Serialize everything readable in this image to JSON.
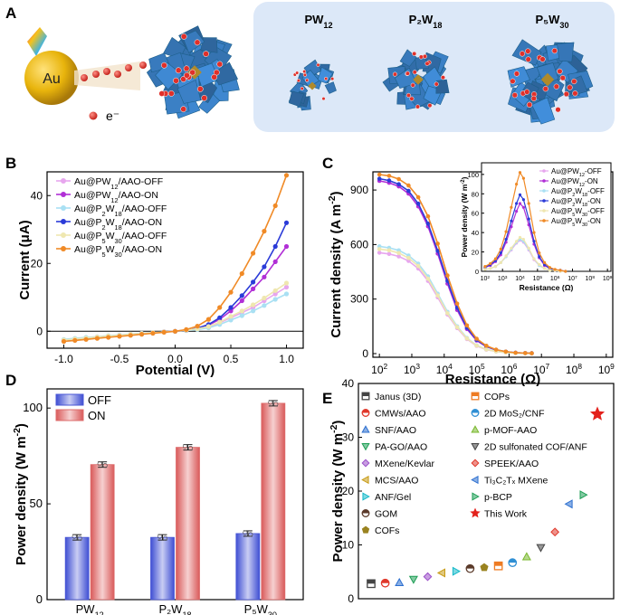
{
  "panel_a": {
    "letter": "A",
    "gold_label": "Au",
    "electron_label": "e⁻",
    "cluster_labels": [
      {
        "main": "PW",
        "sub": "12"
      },
      {
        "main": "P₂W",
        "sub": "18"
      },
      {
        "main": "P₅W",
        "sub": "30"
      }
    ],
    "colors": {
      "gold": "#e8b40c",
      "polyhedra": "#3f9ccd",
      "electron": "#d9302b",
      "panel_bg": "#dce8f8"
    }
  },
  "chart_data": [
    {
      "id": "B",
      "letter": "B",
      "type": "line",
      "xlabel": "Potential (V)",
      "ylabel": "Current (μA)",
      "xlim": [
        -1.15,
        1.15
      ],
      "ylim": [
        -5,
        47
      ],
      "xticks": [
        -1.0,
        -0.5,
        0.0,
        0.5,
        1.0
      ],
      "xtick_labels": [
        "-1.0",
        "-0.5",
        "0.0",
        "0.5",
        "1.0"
      ],
      "yticks": [
        0,
        20,
        40
      ],
      "ytick_labels": [
        "0",
        "20",
        "40"
      ],
      "zero_line": true,
      "legend": "top-left",
      "x": [
        -1.0,
        -0.9,
        -0.8,
        -0.7,
        -0.6,
        -0.5,
        -0.4,
        -0.3,
        -0.2,
        -0.1,
        0.0,
        0.1,
        0.2,
        0.3,
        0.4,
        0.5,
        0.6,
        0.7,
        0.8,
        0.9,
        1.0
      ],
      "series": [
        {
          "name": "Au@PW12/AAO-OFF",
          "label_main": "Au@PW",
          "label_sub": "12",
          "label_tail": "/AAO-OFF",
          "color": "#e7a6ee",
          "values": [
            -2.5,
            -2.2,
            -1.9,
            -1.6,
            -1.4,
            -1.1,
            -0.9,
            -0.6,
            -0.4,
            -0.2,
            0.0,
            0.2,
            0.6,
            1.2,
            2.5,
            4.0,
            5.5,
            7.0,
            9.0,
            11.0,
            13.0
          ]
        },
        {
          "name": "Au@PW12/AAO-ON",
          "label_main": "Au@PW",
          "label_sub": "12",
          "label_tail": "/AAO-ON",
          "color": "#b12fd6",
          "values": [
            -2.8,
            -2.5,
            -2.2,
            -1.9,
            -1.6,
            -1.3,
            -1.0,
            -0.7,
            -0.5,
            -0.2,
            0.0,
            0.3,
            0.8,
            1.8,
            3.5,
            6.0,
            9.0,
            12.5,
            16.0,
            20.5,
            25.0
          ]
        },
        {
          "name": "Au@P2W18/AAO-OFF",
          "label_main": "Au@P",
          "label_sub": "2",
          "label_mid": "W",
          "label_sub2": "18",
          "label_tail": "/AAO-OFF",
          "color": "#a9e0f3",
          "values": [
            -2.4,
            -2.1,
            -1.8,
            -1.6,
            -1.3,
            -1.1,
            -0.8,
            -0.6,
            -0.4,
            -0.2,
            0.0,
            0.2,
            0.5,
            1.0,
            2.0,
            3.3,
            4.6,
            6.0,
            7.6,
            9.4,
            11.0
          ]
        },
        {
          "name": "Au@P2W18/AAO-ON",
          "label_main": "Au@P",
          "label_sub": "2",
          "label_mid": "W",
          "label_sub2": "18",
          "label_tail": "/AAO-ON",
          "color": "#2b3bd8",
          "values": [
            -2.9,
            -2.6,
            -2.3,
            -2.0,
            -1.7,
            -1.4,
            -1.1,
            -0.8,
            -0.5,
            -0.2,
            0.0,
            0.3,
            0.9,
            2.0,
            4.0,
            7.0,
            10.5,
            14.5,
            19.0,
            25.0,
            32.0
          ]
        },
        {
          "name": "Au@P5W30/AAO-OFF",
          "label_main": "Au@P",
          "label_sub": "5",
          "label_mid": "W",
          "label_sub2": "30",
          "label_tail": "/AAO-OFF",
          "color": "#efe7b0",
          "values": [
            -2.6,
            -2.3,
            -2.0,
            -1.7,
            -1.4,
            -1.2,
            -0.9,
            -0.7,
            -0.4,
            -0.2,
            0.0,
            0.3,
            0.7,
            1.4,
            2.7,
            4.4,
            6.0,
            7.8,
            9.8,
            12.0,
            14.2
          ]
        },
        {
          "name": "Au@P5W30/AAO-ON",
          "label_main": "Au@P",
          "label_sub": "5",
          "label_mid": "W",
          "label_sub2": "30",
          "label_tail": "/AAO-ON",
          "color": "#f08a26",
          "values": [
            -3.0,
            -2.7,
            -2.4,
            -2.1,
            -1.8,
            -1.5,
            -1.2,
            -0.9,
            -0.6,
            -0.3,
            0.0,
            0.5,
            1.5,
            3.5,
            7.0,
            11.5,
            17.0,
            23.0,
            29.5,
            37.0,
            46.0
          ]
        }
      ]
    },
    {
      "id": "C",
      "letter": "C",
      "type": "line",
      "xscale": "log",
      "xlabel": "Resistance (Ω)",
      "ylabel": "Current density (A m⁻²)",
      "xlim_exp": [
        1.8,
        9.2
      ],
      "ylim": [
        -20,
        1000
      ],
      "xtick_exps": [
        2,
        3,
        4,
        5,
        6,
        7,
        8,
        9
      ],
      "yticks": [
        0,
        300,
        600,
        900
      ],
      "ytick_labels": [
        "0",
        "300",
        "600",
        "900"
      ],
      "series_note": "same series as panel B",
      "x_exp": [
        2.0,
        2.3,
        2.6,
        2.9,
        3.2,
        3.5,
        3.8,
        4.1,
        4.4,
        4.7,
        5.0,
        5.3,
        5.6,
        5.9,
        6.2,
        6.5,
        6.7
      ],
      "series": [
        {
          "name": "Au@PW12/AAO-OFF",
          "color": "#e7a6ee",
          "values": [
            555,
            548,
            535,
            510,
            468,
            400,
            310,
            215,
            140,
            80,
            42,
            22,
            12,
            6,
            3,
            2,
            1
          ]
        },
        {
          "name": "Au@PW12/AAO-ON",
          "color": "#b12fd6",
          "values": [
            950,
            940,
            920,
            880,
            810,
            700,
            550,
            385,
            240,
            135,
            72,
            38,
            20,
            10,
            5,
            3,
            2
          ]
        },
        {
          "name": "Au@P2W18/AAO-OFF",
          "color": "#a9e0f3",
          "values": [
            590,
            582,
            568,
            540,
            495,
            425,
            330,
            230,
            150,
            86,
            45,
            24,
            13,
            7,
            3,
            2,
            1
          ]
        },
        {
          "name": "Au@P2W18/AAO-ON",
          "color": "#2b3bd8",
          "values": [
            962,
            952,
            932,
            895,
            825,
            715,
            565,
            400,
            252,
            142,
            76,
            40,
            21,
            11,
            5,
            3,
            2
          ]
        },
        {
          "name": "Au@P5W30/AAO-OFF",
          "color": "#efe7b0",
          "values": [
            575,
            568,
            553,
            526,
            482,
            412,
            320,
            222,
            145,
            83,
            44,
            23,
            12,
            6,
            3,
            2,
            1
          ]
        },
        {
          "name": "Au@P5W30/AAO-ON",
          "color": "#f08a26",
          "values": [
            985,
            978,
            960,
            925,
            860,
            755,
            605,
            430,
            275,
            155,
            82,
            43,
            22,
            11,
            5,
            3,
            2
          ]
        }
      ],
      "inset": {
        "type": "line",
        "xscale": "log",
        "xlabel": "Resistance (Ω)",
        "ylabel": "Power density (W m⁻²)",
        "xlim_exp": [
          1.8,
          9.2
        ],
        "ylim": [
          0,
          112
        ],
        "xtick_exps": [
          2,
          3,
          4,
          5,
          6,
          7,
          8,
          9
        ],
        "yticks": [
          0,
          20,
          40,
          60,
          80,
          100
        ],
        "ytick_labels": [
          "0",
          "20",
          "40",
          "60",
          "80",
          "100"
        ],
        "legend": "top-right",
        "x_exp": [
          2.0,
          2.3,
          2.6,
          2.9,
          3.2,
          3.5,
          3.8,
          4.0,
          4.2,
          4.5,
          4.8,
          5.1,
          5.4,
          5.7,
          6.0,
          6.3,
          6.6
        ],
        "series": [
          {
            "name": "Au@PW12-OFF",
            "label_main": "Au@PW",
            "label_sub": "12",
            "label_tail": "-OFF",
            "color": "#e7a6ee",
            "values": [
              2,
              3,
              5,
              9,
              15,
              22,
              29,
              32,
              30,
              22,
              12,
              6,
              3,
              1,
              1,
              0,
              0
            ]
          },
          {
            "name": "Au@PW12-ON",
            "label_main": "Au@PW",
            "label_sub": "12",
            "label_tail": "-ON",
            "color": "#b12fd6",
            "values": [
              4,
              6,
              10,
              17,
              30,
              46,
              62,
              70,
              66,
              48,
              28,
              14,
              6,
              3,
              1,
              1,
              0
            ]
          },
          {
            "name": "Au@P2W18-OFF",
            "label_main": "Au@P",
            "label_sub": "2",
            "label_mid": "W",
            "label_sub2": "18",
            "label_tail": "-OFF",
            "color": "#a9e0f3",
            "values": [
              2,
              3,
              5,
              9,
              15,
              23,
              30,
              33,
              31,
              23,
              13,
              6,
              3,
              1,
              1,
              0,
              0
            ]
          },
          {
            "name": "Au@P2W18-ON",
            "label_main": "Au@P",
            "label_sub": "2",
            "label_mid": "W",
            "label_sub2": "18",
            "label_tail": "-ON",
            "color": "#2b3bd8",
            "values": [
              4,
              7,
              11,
              19,
              33,
              52,
              70,
              79,
              74,
              54,
              31,
              15,
              7,
              3,
              1,
              1,
              0
            ]
          },
          {
            "name": "Au@P5W30-OFF",
            "label_main": "Au@P",
            "label_sub": "5",
            "label_mid": "W",
            "label_sub2": "30",
            "label_tail": "-OFF",
            "color": "#efe7b0",
            "values": [
              2,
              3,
              5,
              9,
              16,
              24,
              31,
              35,
              33,
              24,
              13,
              7,
              3,
              1,
              1,
              0,
              0
            ]
          },
          {
            "name": "Au@P5W30-ON",
            "label_main": "Au@P",
            "label_sub": "5",
            "label_mid": "W",
            "label_sub2": "30",
            "label_tail": "-ON",
            "color": "#f08a26",
            "values": [
              5,
              8,
              13,
              23,
              41,
              66,
              90,
              102,
              96,
              70,
              40,
              19,
              9,
              4,
              2,
              1,
              0
            ]
          }
        ]
      }
    },
    {
      "id": "D",
      "letter": "D",
      "type": "bar",
      "ylabel": "Power density (W m⁻²)",
      "ylim": [
        0,
        110
      ],
      "yticks": [
        0,
        50,
        100
      ],
      "ytick_labels": [
        "0",
        "50",
        "100"
      ],
      "categories": [
        {
          "main": "PW",
          "sub": "12"
        },
        {
          "main": "P₂W",
          "sub": "18"
        },
        {
          "main": "P₅W",
          "sub": "30"
        }
      ],
      "legend": "top-left",
      "series": [
        {
          "name": "OFF",
          "color": "#4a57d6",
          "values": [
            32.5,
            32.5,
            34.5
          ]
        },
        {
          "name": "ON",
          "color": "#dd6b6b",
          "values": [
            70.5,
            79.5,
            102.5
          ]
        }
      ]
    },
    {
      "id": "E",
      "letter": "E",
      "type": "scatter",
      "ylabel": "Power density (W m⁻²)",
      "ylim": [
        0,
        40
      ],
      "yticks": [
        0,
        10,
        20,
        30,
        40
      ],
      "ytick_labels": [
        "0",
        "10",
        "20",
        "30",
        "40"
      ],
      "legend": "top-left",
      "points": [
        {
          "name": "Janus (3D)",
          "marker": "square",
          "color": "#444444",
          "x": 1,
          "y": 2.8
        },
        {
          "name": "CMWs/AAO",
          "marker": "circle-half",
          "color": "#e0382b",
          "x": 2,
          "y": 2.9
        },
        {
          "name": "SNF/AAO",
          "marker": "triangle-up",
          "color": "#2c6fd0",
          "x": 3,
          "y": 3.0
        },
        {
          "name": "PA-GO/AAO",
          "marker": "triangle-down",
          "color": "#1e9e55",
          "x": 4,
          "y": 3.6
        },
        {
          "name": "MXene/Kevlar",
          "marker": "diamond",
          "color": "#9b4fc9",
          "x": 5,
          "y": 4.1
        },
        {
          "name": "MCS/AAO",
          "marker": "triangle-left",
          "color": "#c79a13",
          "x": 6,
          "y": 4.8
        },
        {
          "name": "ANF/Gel",
          "marker": "triangle-right",
          "color": "#12b8c8",
          "x": 7,
          "y": 5.1
        },
        {
          "name": "GOM",
          "marker": "circle-half",
          "color": "#5b3a2a",
          "x": 8,
          "y": 5.6
        },
        {
          "name": "COFs",
          "marker": "pentagon",
          "color": "#9a8320",
          "x": 9,
          "y": 5.8
        },
        {
          "name": "COPs",
          "marker": "square",
          "color": "#ee7b23",
          "x": 10,
          "y": 6.1
        },
        {
          "name": "2D MoS₂/CNF",
          "marker": "circle-half",
          "color": "#2f8fd4",
          "x": 11,
          "y": 6.7
        },
        {
          "name": "p-MOF-AAO",
          "marker": "triangle-up",
          "color": "#7ab82e",
          "x": 12,
          "y": 7.8
        },
        {
          "name": "2D sulfonated COF/ANF",
          "marker": "triangle-down",
          "color": "#444444",
          "x": 13,
          "y": 9.5
        },
        {
          "name": "SPEEK/AAO",
          "marker": "diamond",
          "color": "#e0382b",
          "x": 14,
          "y": 12.4
        },
        {
          "name": "Ti₃C₂Tₓ MXene",
          "marker": "triangle-left",
          "color": "#2c6fd0",
          "x": 15,
          "y": 17.6
        },
        {
          "name": "p-BCP",
          "marker": "triangle-right",
          "color": "#1e9e55",
          "x": 16,
          "y": 19.3
        },
        {
          "name": "This Work",
          "marker": "star",
          "color": "#e3211c",
          "x": 17,
          "y": 34.3
        }
      ]
    }
  ]
}
